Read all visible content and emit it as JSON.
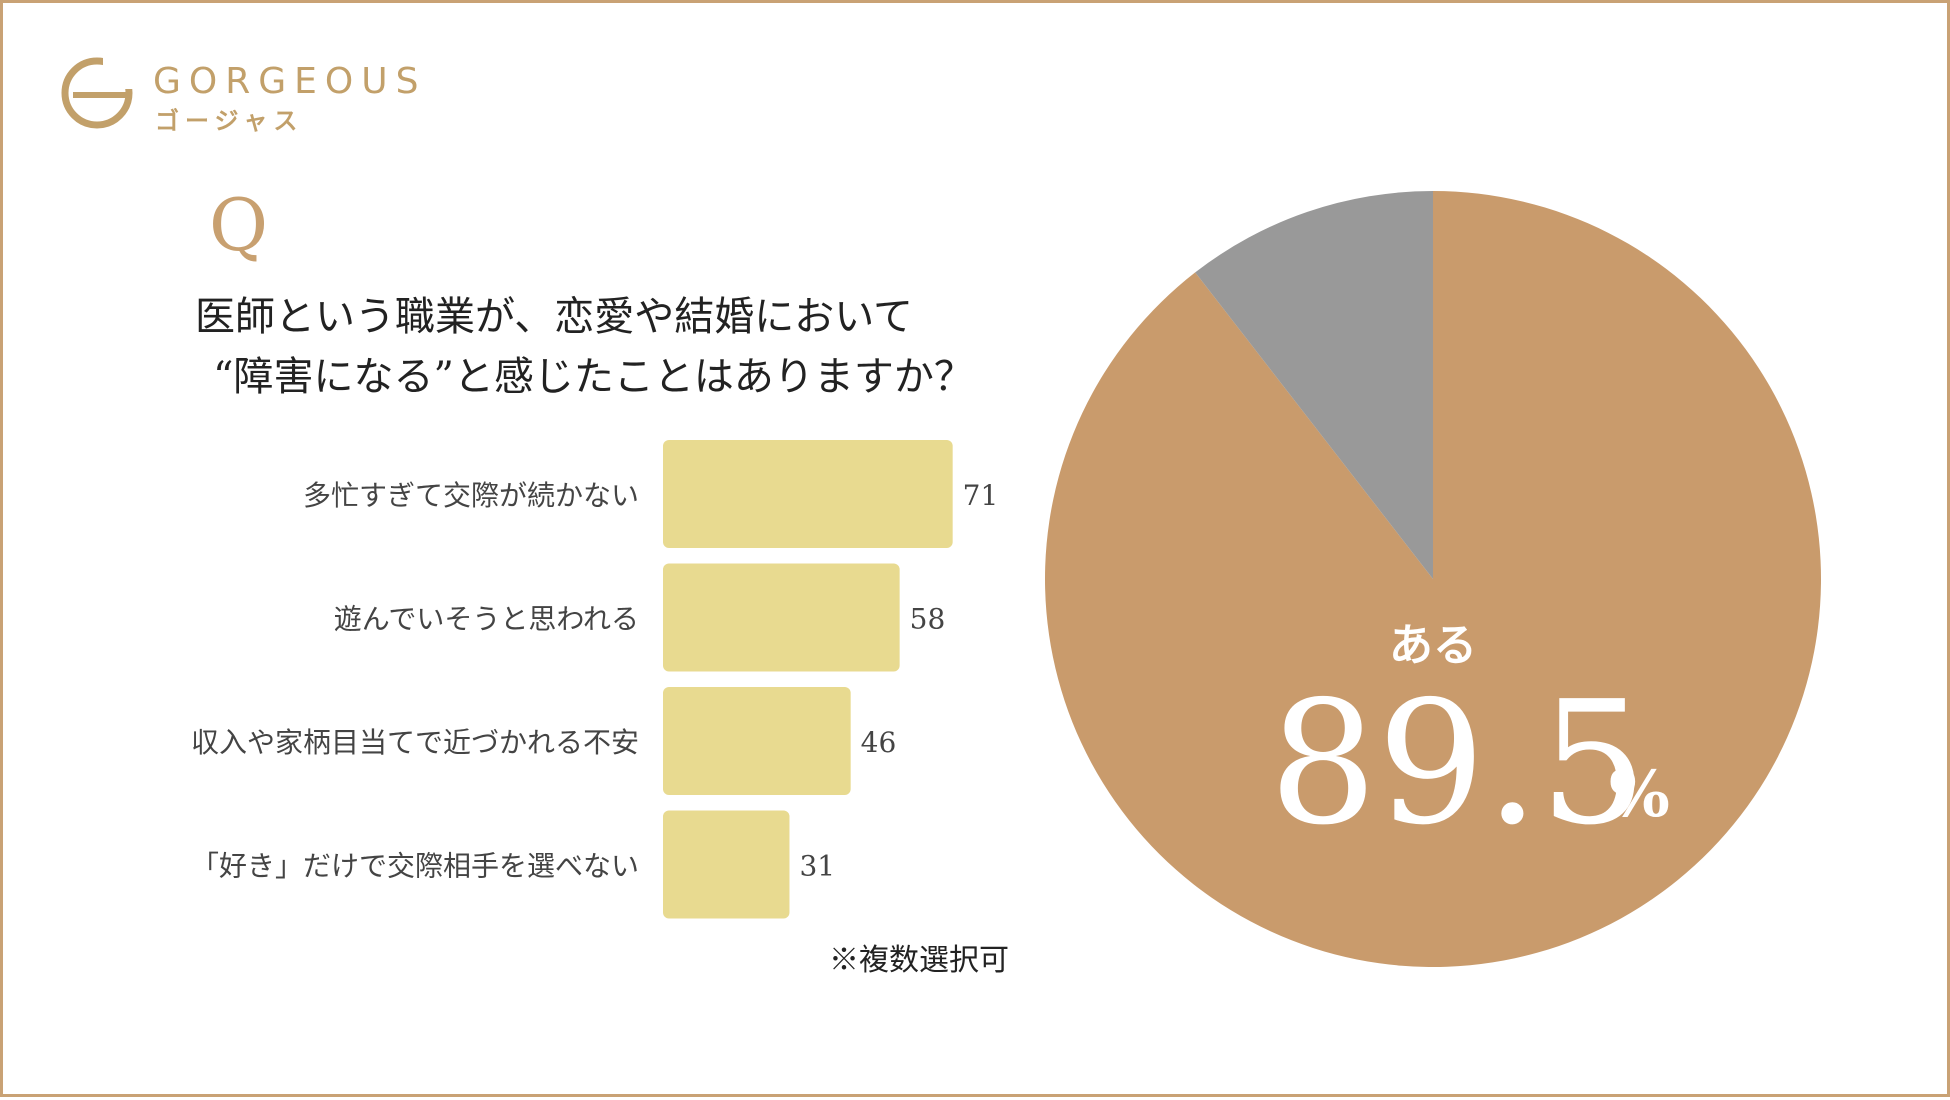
{
  "brand": {
    "name_en": "GORGEOUS",
    "name_ja": "ゴージャス",
    "color": "#c2a06a"
  },
  "question": {
    "mark": "Q",
    "line1": "医師という職業が、恋愛や結婚において",
    "line2": "“障害になる”と感じたことはありますか？"
  },
  "note": "※複数選択可",
  "chart_data": [
    {
      "type": "bar",
      "orientation": "horizontal",
      "categories": [
        "多忙すぎて交際が続かない",
        "遊んでいそうと思われる",
        "収入や家柄目当てで近づかれる不安",
        "「好き」だけで交際相手を選べない"
      ],
      "values": [
        71,
        58,
        46,
        31
      ],
      "value_labels": [
        "71",
        "58",
        "46",
        "31"
      ],
      "color": "#e8da90"
    },
    {
      "type": "pie",
      "slices": [
        {
          "label": "ある",
          "value": 89.5,
          "color": "#c99b6c"
        },
        {
          "label": "",
          "value": 10.5,
          "color": "#999999"
        }
      ],
      "main_label": "ある",
      "main_value": "89.5",
      "main_unit": "%"
    }
  ]
}
